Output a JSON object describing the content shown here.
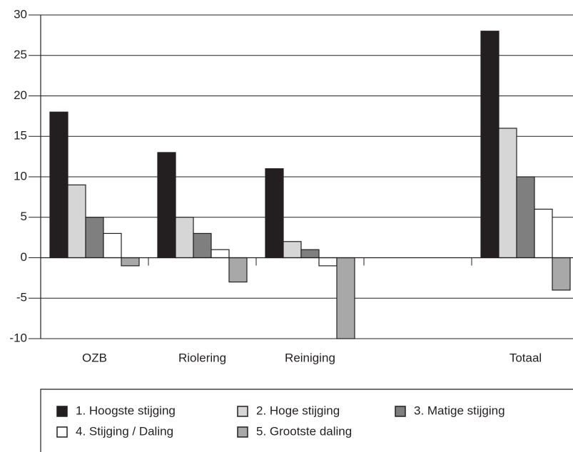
{
  "chart_data": {
    "type": "bar",
    "categories": [
      "OZB",
      "Riolering",
      "Reiniging",
      null,
      "Totaal"
    ],
    "series": [
      {
        "name": "1. Hoogste stijging",
        "color": "#231f20",
        "values": [
          18,
          13,
          11,
          0,
          28
        ]
      },
      {
        "name": "2. Hoge stijging",
        "color": "#d6d6d6",
        "values": [
          9,
          5,
          2,
          0,
          16
        ]
      },
      {
        "name": "3. Matige stijging",
        "color": "#7f7f7f",
        "values": [
          5,
          3,
          1,
          0,
          10
        ]
      },
      {
        "name": "4. Stijging / Daling",
        "color": "#ffffff",
        "values": [
          3,
          1,
          -1,
          0,
          6
        ]
      },
      {
        "name": "5. Grootste daling",
        "color": "#a8a8a8",
        "values": [
          -1,
          -3,
          -10,
          0,
          -4
        ]
      }
    ],
    "ylim": [
      -10,
      30
    ],
    "yticks": [
      -10,
      -5,
      0,
      5,
      10,
      15,
      20,
      25,
      30
    ],
    "grid": true,
    "legend": "bottom"
  }
}
